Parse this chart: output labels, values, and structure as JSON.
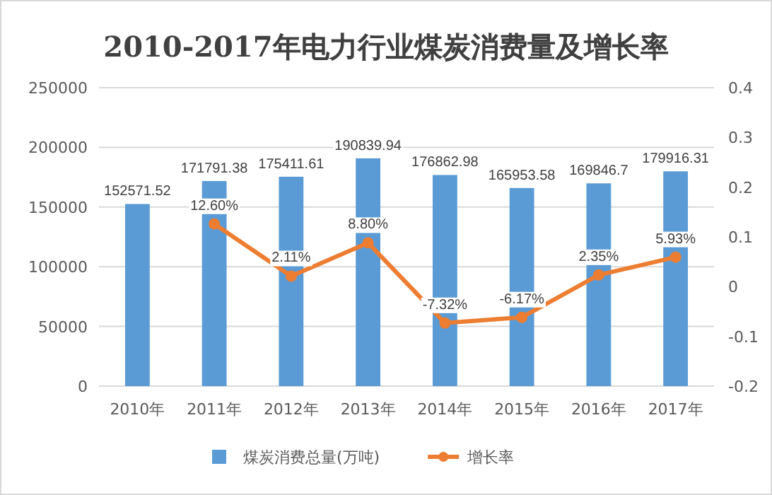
{
  "chart_data": {
    "type": "bar",
    "title": "2010-2017年电力行业煤炭消费量及增长率",
    "categories": [
      "2010年",
      "2011年",
      "2012年",
      "2013年",
      "2014年",
      "2015年",
      "2016年",
      "2017年"
    ],
    "series": [
      {
        "name": "煤炭消费总量(万吨)",
        "color": "#5b9bd5",
        "values": [
          152571.52,
          171791.38,
          175411.61,
          190839.94,
          176862.98,
          165953.58,
          169846.7,
          179916.31
        ],
        "value_labels": [
          "152571.52",
          "171791.38",
          "175411.61",
          "190839.94",
          "176862.98",
          "165953.58",
          "169846.7",
          "179916.31"
        ]
      },
      {
        "name": "增长率",
        "type": "line",
        "axis": "y2",
        "color": "#ed7d31",
        "marker": "circle",
        "values": [
          null,
          0.126,
          0.0211,
          0.088,
          -0.0732,
          -0.0617,
          0.0235,
          0.0593
        ],
        "value_labels": [
          null,
          "12.60%",
          "2.11%",
          "8.80%",
          "-7.32%",
          "-6.17%",
          "2.35%",
          "5.93%"
        ]
      }
    ],
    "ylim": [
      0,
      250000
    ],
    "yticks": [
      0,
      50000,
      100000,
      150000,
      200000,
      250000
    ],
    "y2lim": [
      -0.2,
      0.4
    ],
    "y2ticks": [
      -0.2,
      -0.1,
      0,
      0.1,
      0.2,
      0.3,
      0.4
    ],
    "grid": "y",
    "legend": "bottom"
  }
}
